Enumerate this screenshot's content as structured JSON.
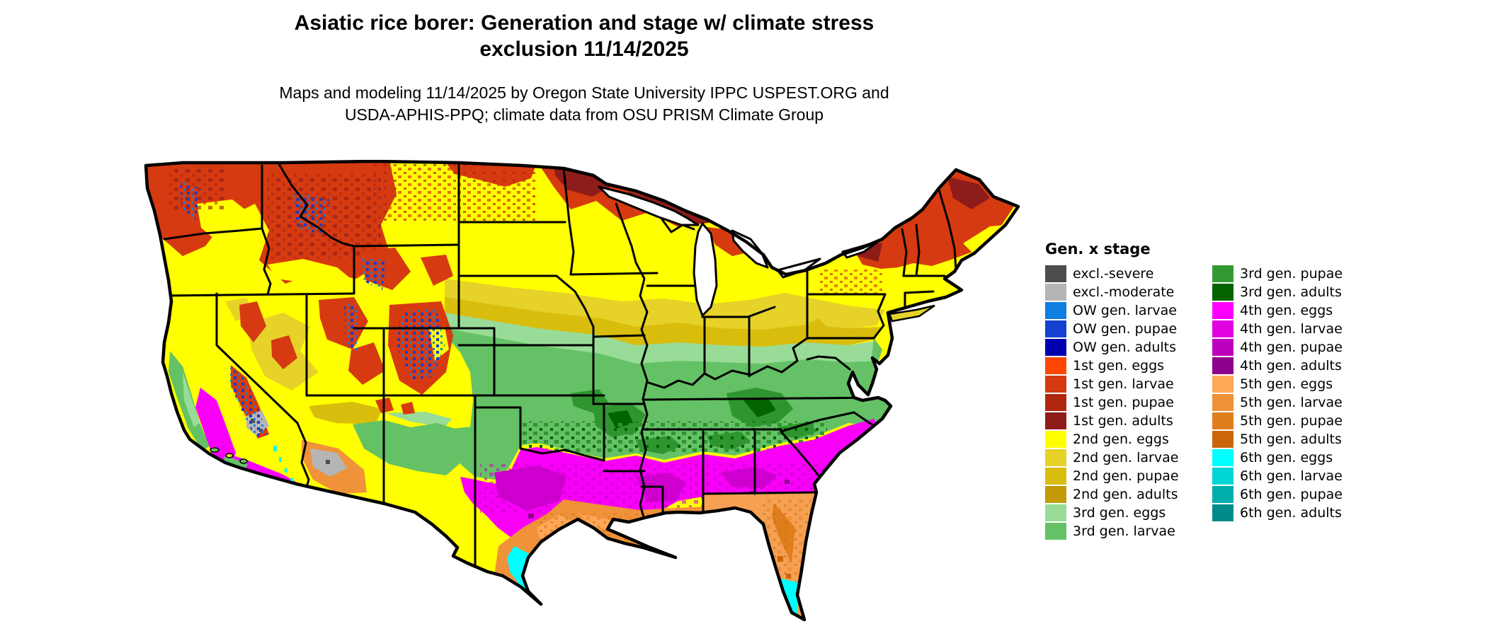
{
  "title": {
    "line1": "Asiatic rice borer: Generation and stage w/ climate stress",
    "line2": "exclusion 11/14/2025"
  },
  "subtitle": {
    "line1": "Maps and modeling 11/14/2025 by Oregon State University IPPC USPEST.ORG and",
    "line2": "USDA-APHIS-PPQ; climate data from OSU PRISM Climate Group"
  },
  "legend": {
    "title": "Gen. x stage",
    "columns": [
      [
        {
          "label": "excl.-severe",
          "color": "#4d4d4d"
        },
        {
          "label": "excl.-moderate",
          "color": "#b5b5b5"
        },
        {
          "label": "OW gen. larvae",
          "color": "#0d7fe0"
        },
        {
          "label": "OW gen. pupae",
          "color": "#1441cf"
        },
        {
          "label": "OW gen. adults",
          "color": "#0000b0"
        },
        {
          "label": "1st gen. eggs",
          "color": "#ff4703"
        },
        {
          "label": "1st gen. larvae",
          "color": "#d63a10"
        },
        {
          "label": "1st gen. pupae",
          "color": "#b0260f"
        },
        {
          "label": "1st gen. adults",
          "color": "#8e1c1a"
        },
        {
          "label": "2nd gen. eggs",
          "color": "#ffff00"
        },
        {
          "label": "2nd gen. larvae",
          "color": "#e6d229"
        },
        {
          "label": "2nd gen. pupae",
          "color": "#d9bd0d"
        },
        {
          "label": "2nd gen. adults",
          "color": "#c29b06"
        },
        {
          "label": "3rd gen. eggs",
          "color": "#98dc98"
        },
        {
          "label": "3rd gen. larvae",
          "color": "#65c165"
        }
      ],
      [
        {
          "label": "3rd gen. pupae",
          "color": "#339a33"
        },
        {
          "label": "3rd gen. adults",
          "color": "#016401"
        },
        {
          "label": "4th gen. eggs",
          "color": "#ff00ff"
        },
        {
          "label": "4th gen. larvae",
          "color": "#e000e0"
        },
        {
          "label": "4th gen. pupae",
          "color": "#bd00bd"
        },
        {
          "label": "4th gen. adults",
          "color": "#8d008d"
        },
        {
          "label": "5th gen. eggs",
          "color": "#ffa857"
        },
        {
          "label": "5th gen. larvae",
          "color": "#ef9239"
        },
        {
          "label": "5th gen. pupae",
          "color": "#df7d1d"
        },
        {
          "label": "5th gen. adults",
          "color": "#ca6609"
        },
        {
          "label": "6th gen. eggs",
          "color": "#00ffff"
        },
        {
          "label": "6th gen. larvae",
          "color": "#00d5d5"
        },
        {
          "label": "6th gen. pupae",
          "color": "#00aeae"
        },
        {
          "label": "6th gen. adults",
          "color": "#008b8b"
        }
      ]
    ]
  },
  "map": {
    "region": "Contiguous United States",
    "kind": "gridded pest phenology raster with state boundaries",
    "zones_north_to_south": [
      "1st gen. larvae/pupae/adults (reds) across northern mountains, northern Minnesota, Great Lakes north and northern New England",
      "OW gen. larvae/pupae (blues) at high elevations of the Rockies, Wasatch and Sierra Nevada",
      "2nd gen. eggs/larvae (yellows) across the northern tier and interior West",
      "2nd gen. pupae/adults (golds) through the central Midwest and Appalachians",
      "3rd gen. eggs/larvae (greens) across the mid-latitudes and mid-Atlantic coast",
      "3rd gen. pupae/adults (dark greens) along the green-magenta transition",
      "4th gen. stages (magentas) across the South and southern California deserts",
      "5th gen. stages (oranges) along the Gulf Coast, Florida and southwest Arizona",
      "6th gen. eggs (cyan) in far south Texas and south Florida",
      "exclusion greys (excl.-moderate/severe) in the lower Colorado River desert"
    ]
  }
}
